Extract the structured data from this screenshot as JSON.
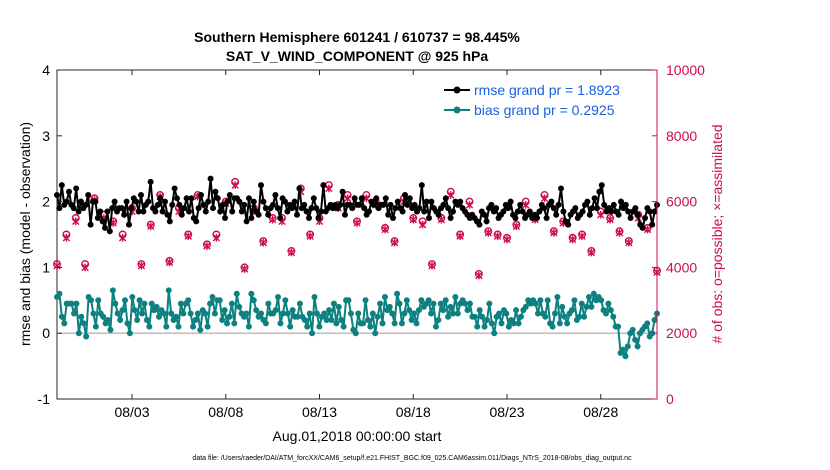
{
  "chart_data": {
    "type": "line",
    "title": "Southern Hemisphere 601241 / 610737 = 98.445%",
    "subtitle": "SAT_V_WIND_COMPONENT @ 925 hPa",
    "xlabel": "Aug.01,2018 00:00:00 start",
    "ylabel": "rmse and bias (model - observation)",
    "y2label": "# of obs: o=possible; ×=assimilated",
    "ylim": [
      -1,
      4
    ],
    "y2lim": [
      0,
      10000
    ],
    "yticks": [
      "-1",
      "0",
      "1",
      "2",
      "3",
      "4"
    ],
    "y2ticks": [
      "0",
      "2000",
      "4000",
      "6000",
      "8000",
      "10000"
    ],
    "xlim": [
      0,
      64
    ],
    "xticks": [
      {
        "pos": 8,
        "label": "08/03"
      },
      {
        "pos": 18,
        "label": "08/08"
      },
      {
        "pos": 28,
        "label": "08/13"
      },
      {
        "pos": 38,
        "label": "08/18"
      },
      {
        "pos": 48,
        "label": "08/23"
      },
      {
        "pos": 58,
        "label": "08/28"
      }
    ],
    "legend": [
      {
        "label": "rmse grand pr = 1.8923",
        "color": "#000000"
      },
      {
        "label": "bias grand pr = 0.2925",
        "color": "#0d8080"
      }
    ],
    "legend_position": "top-right",
    "zero_line": true,
    "series": [
      {
        "name": "rmse",
        "axis": "left",
        "color": "#000000",
        "values": [
          2.1,
          1.9,
          2.25,
          1.95,
          2.0,
          2.15,
          1.95,
          1.9,
          2.2,
          1.85,
          2.0,
          1.9,
          1.95,
          2.1,
          1.65,
          2.0,
          2.0,
          1.75,
          1.85,
          1.7,
          1.6,
          1.85,
          1.55,
          1.9,
          2.0,
          1.85,
          1.9,
          1.9,
          1.8,
          2.0,
          1.65,
          1.9,
          2.05,
          2.0,
          1.85,
          2.1,
          1.85,
          1.95,
          2.0,
          2.3,
          1.9,
          1.85,
          1.95,
          2.05,
          1.85,
          2.0,
          1.8,
          1.7,
          1.95,
          2.2,
          2.05,
          1.95,
          1.8,
          1.9,
          2.05,
          1.85,
          2.05,
          1.75,
          1.7,
          1.9,
          2.1,
          1.95,
          1.85,
          2.0,
          2.35,
          1.9,
          2.15,
          2.05,
          1.85,
          1.95,
          1.75,
          2.0,
          2.1,
          1.85,
          2.05,
          2.05,
          2.0,
          1.85,
          1.95,
          1.7,
          2.05,
          1.75,
          2.0,
          1.85,
          1.8,
          2.25,
          2.0,
          1.9,
          1.8,
          1.9,
          1.95,
          2.1,
          1.9,
          1.75,
          2.05,
          2.0,
          1.85,
          1.95,
          1.9,
          2.0,
          1.8,
          2.2,
          1.9,
          1.95,
          1.85,
          1.75,
          1.9,
          2.05,
          1.9,
          1.75,
          1.85,
          2.25,
          1.85,
          1.9,
          1.95,
          1.9,
          1.95,
          1.9,
          1.95,
          2.15,
          1.8,
          1.95,
          1.95,
          1.9,
          2.05,
          1.95,
          1.95,
          2.05,
          1.9,
          1.8,
          1.85,
          2.0,
          1.95,
          2.05,
          1.9,
          1.95,
          1.95,
          2.05,
          1.8,
          1.95,
          1.75,
          1.9,
          2.0,
          1.9,
          1.85,
          2.1,
          1.95,
          2.05,
          1.9,
          1.95,
          1.85,
          1.9,
          2.25,
          1.85,
          2.0,
          1.75,
          2.0,
          1.9,
          1.85,
          1.8,
          1.9,
          1.95,
          2.05,
          1.9,
          1.75,
          1.85,
          2.0,
          1.95,
          2.0,
          1.9,
          1.85,
          1.8,
          1.75,
          1.8,
          1.75,
          1.7,
          1.65,
          1.85,
          1.8,
          1.7,
          1.9,
          1.95,
          1.85,
          1.9,
          1.75,
          1.8,
          1.85,
          1.95,
          1.9,
          2.0,
          1.8,
          1.75,
          1.85,
          1.95,
          1.85,
          1.75,
          1.8,
          1.85,
          1.75,
          1.8,
          1.75,
          1.85,
          1.95,
          1.9,
          1.75,
          1.95,
          2.0,
          1.9,
          1.8,
          1.95,
          2.2,
          1.85,
          1.7,
          1.65,
          1.8,
          1.85,
          1.9,
          1.75,
          1.8,
          1.85,
          1.95,
          2.0,
          1.8,
          1.9,
          2.05,
          1.9,
          2.15,
          2.25,
          1.95,
          1.85,
          1.9,
          1.85,
          1.95,
          1.85,
          1.8,
          2.0,
          1.9,
          1.95,
          1.85,
          1.75,
          1.85,
          1.9,
          1.8,
          1.65,
          1.6,
          1.75,
          1.9,
          1.85,
          1.65,
          1.85,
          1.95
        ]
      },
      {
        "name": "bias",
        "axis": "left",
        "color": "#0d8080",
        "values": [
          0.55,
          0.6,
          0.25,
          0.15,
          0.45,
          0.45,
          0.45,
          0.3,
          0.45,
          0.0,
          0.25,
          0.15,
          -0.05,
          0.55,
          0.5,
          0.3,
          0.1,
          0.5,
          0.3,
          0.25,
          0.15,
          0.2,
          0.05,
          0.65,
          0.45,
          0.3,
          0.2,
          0.35,
          0.5,
          0.15,
          0.0,
          0.55,
          0.35,
          0.2,
          0.5,
          0.3,
          0.45,
          0.2,
          0.1,
          0.45,
          0.35,
          0.4,
          0.25,
          0.35,
          0.3,
          0.1,
          0.65,
          0.3,
          0.2,
          0.25,
          0.1,
          0.45,
          0.3,
          0.45,
          0.5,
          0.3,
          0.1,
          0.2,
          0.3,
          0.05,
          0.35,
          0.3,
          0.1,
          0.45,
          0.55,
          0.3,
          0.5,
          0.5,
          0.2,
          0.35,
          0.15,
          0.25,
          0.45,
          0.15,
          0.6,
          0.4,
          0.3,
          0.25,
          0.3,
          0.1,
          0.6,
          0.5,
          0.35,
          0.25,
          0.3,
          0.2,
          0.15,
          0.45,
          0.3,
          0.3,
          0.35,
          0.55,
          0.15,
          0.3,
          0.5,
          0.3,
          0.1,
          0.35,
          0.25,
          0.25,
          0.45,
          0.25,
          0.2,
          0.1,
          0.3,
          0.0,
          0.55,
          0.3,
          0.1,
          0.25,
          0.3,
          0.2,
          0.35,
          0.2,
          0.45,
          0.15,
          0.4,
          0.2,
          0.1,
          0.5,
          0.5,
          0.3,
          0.05,
          0.0,
          0.3,
          0.15,
          0.15,
          0.5,
          0.2,
          0.1,
          0.3,
          0.0,
          0.25,
          0.45,
          0.15,
          0.55,
          0.35,
          0.4,
          0.3,
          0.15,
          0.6,
          0.45,
          0.15,
          0.3,
          0.5,
          0.35,
          0.2,
          0.3,
          0.15,
          0.35,
          0.5,
          0.4,
          0.45,
          0.5,
          0.3,
          0.45,
          0.1,
          0.2,
          0.45,
          0.35,
          0.5,
          0.25,
          0.4,
          0.3,
          0.55,
          0.3,
          0.45,
          0.5,
          0.45,
          0.35,
          0.45,
          0.25,
          0.25,
          0.1,
          0.35,
          0.25,
          0.1,
          0.2,
          0.45,
          0.15,
          0.0,
          0.25,
          0.3,
          0.15,
          0.35,
          0.3,
          0.1,
          0.2,
          0.15,
          0.35,
          0.15,
          0.25,
          0.35,
          0.4,
          0.5,
          0.45,
          0.5,
          0.45,
          0.3,
          0.5,
          0.3,
          0.25,
          0.5,
          0.15,
          0.1,
          0.3,
          0.55,
          0.15,
          0.4,
          0.25,
          0.15,
          0.3,
          0.35,
          0.5,
          0.2,
          0.25,
          0.45,
          0.25,
          0.4,
          0.55,
          0.4,
          0.6,
          0.5,
          0.55,
          0.5,
          0.35,
          0.3,
          0.45,
          0.35,
          0.25,
          0.1,
          0.1,
          -0.3,
          -0.25,
          -0.35,
          -0.2,
          0.0,
          0.05,
          -0.1,
          -0.2,
          0.0,
          0.05,
          0.1,
          0.15,
          -0.05,
          0.0,
          0.2,
          0.3
        ]
      },
      {
        "name": "obs possible",
        "axis": "right",
        "color": "#cc0d52",
        "marker": "o",
        "values": [
          4100,
          5000,
          5500,
          4100,
          6100,
          5600,
          5400,
          5000,
          5800,
          4100,
          5300,
          6200,
          4200,
          5800,
          5000,
          6200,
          4700,
          5000,
          6000,
          6600,
          4000,
          5800,
          4800,
          5500,
          5500,
          4500,
          6400,
          5000,
          5500,
          6500,
          5900,
          6200,
          5400,
          6200,
          6000,
          5200,
          4800,
          6100,
          5500,
          5400,
          4100,
          5500,
          6300,
          5000,
          6000,
          3800,
          5100,
          5000,
          4900,
          5300,
          6000,
          5500,
          6200,
          5100,
          5400,
          4900,
          5000,
          4500,
          5700,
          5500,
          5100,
          4800,
          5600,
          5200,
          3900
        ]
      },
      {
        "name": "obs assimilated",
        "axis": "right",
        "color": "#cc0d52",
        "marker": "x",
        "values": [
          4050,
          4900,
          5400,
          4000,
          6050,
          5500,
          5350,
          4900,
          5700,
          4050,
          5250,
          6150,
          4150,
          5700,
          4950,
          6150,
          4650,
          4900,
          5950,
          6500,
          3950,
          5700,
          4750,
          5450,
          5400,
          4450,
          6300,
          4950,
          5400,
          6400,
          5800,
          6100,
          5350,
          6100,
          5900,
          5150,
          4750,
          6000,
          5450,
          5300,
          4050,
          5450,
          6200,
          4950,
          5900,
          3750,
          5050,
          4950,
          4850,
          5250,
          5900,
          5450,
          6100,
          5050,
          5350,
          4850,
          4950,
          4450,
          5600,
          5450,
          5050,
          4750,
          5500,
          5150,
          3850
        ]
      }
    ]
  },
  "footnote": "data file: /Users/raeder/DAI/ATM_forcXX/CAM6_setup/f.e21.FHIST_BGC.f09_025.CAM6assim.011/Diags_NTrS_2018-08/obs_diag_output.nc",
  "colors": {
    "rmse": "#000000",
    "bias": "#0d8080",
    "obs": "#cc0d52",
    "zero_line": "#c8b8b8"
  }
}
